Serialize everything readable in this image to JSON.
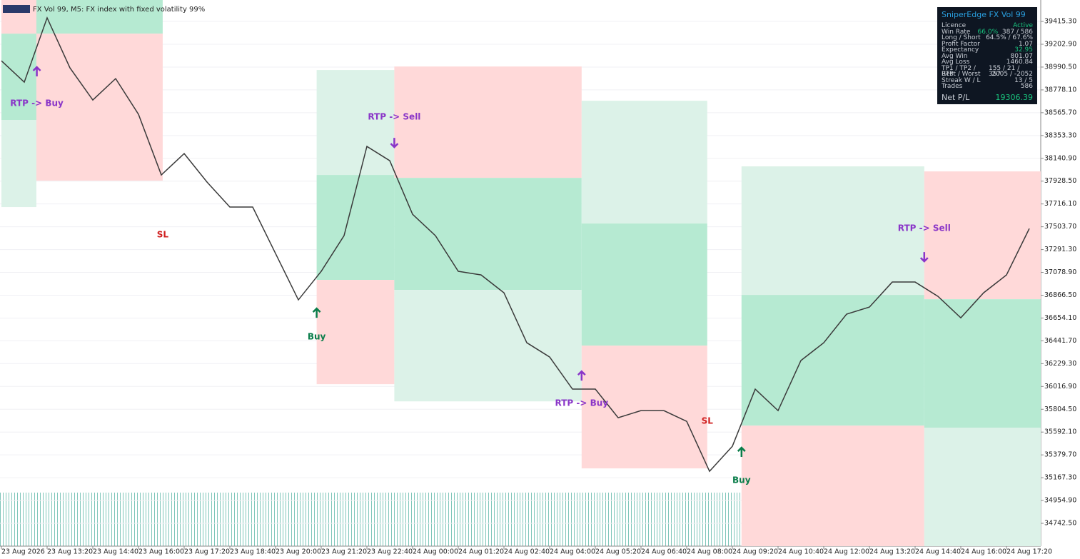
{
  "chart_data": {
    "type": "line",
    "title": "FX Vol 99, M5:  FX index with fixed volatility 99%",
    "categories": [
      "23 Aug 2026",
      null,
      "23 Aug 13:20",
      null,
      "23 Aug 14:40",
      null,
      "23 Aug 16:00",
      null,
      "23 Aug 17:20",
      null,
      "23 Aug 18:40",
      null,
      "23 Aug 20:00",
      null,
      "23 Aug 21:20",
      null,
      "23 Aug 22:40",
      null,
      "24 Aug 00:00",
      null,
      "24 Aug 01:20",
      null,
      "24 Aug 02:40",
      null,
      "24 Aug 04:00",
      null,
      "24 Aug 05:20",
      null,
      "24 Aug 06:40",
      null,
      "24 Aug 08:00",
      null,
      "24 Aug 09:20",
      null,
      "24 Aug 10:40",
      null,
      "24 Aug 12:00",
      null,
      "24 Aug 13:20",
      null,
      "24 Aug 14:40",
      null,
      "24 Aug 16:00",
      null,
      "24 Aug 17:20",
      null
    ],
    "series": [
      {
        "name": "FX Vol 99",
        "color": "#3a3a3a",
        "values": [
          39049,
          38850,
          39449,
          38983,
          38684,
          38883,
          38551,
          37986,
          38185,
          37920,
          37687,
          37687,
          37255,
          36823,
          37089,
          37421,
          38252,
          38119,
          37620,
          37421,
          37089,
          37055,
          36889,
          36424,
          36291,
          35992,
          35992,
          35726,
          35792,
          35792,
          35692,
          35227,
          35460,
          35992,
          35792,
          36258,
          36424,
          36690,
          36756,
          36989,
          36989,
          36856,
          36656,
          36889,
          37055,
          37487
        ]
      }
    ],
    "ylim": [
      34530,
      39615
    ],
    "yticks": [
      {
        "value": 39415.3,
        "label": "39415.30"
      },
      {
        "value": 39202.9,
        "label": "39202.90"
      },
      {
        "value": 38990.5,
        "label": "38990.50"
      },
      {
        "value": 38778.1,
        "label": "38778.10"
      },
      {
        "value": 38565.7,
        "label": "38565.70"
      },
      {
        "value": 38353.3,
        "label": "38353.30"
      },
      {
        "value": 38140.9,
        "label": "38140.90"
      },
      {
        "value": 37928.5,
        "label": "37928.50"
      },
      {
        "value": 37716.1,
        "label": "37716.10"
      },
      {
        "value": 37503.7,
        "label": "37503.70"
      },
      {
        "value": 37291.3,
        "label": "37291.30"
      },
      {
        "value": 37078.9,
        "label": "37078.90"
      },
      {
        "value": 36866.5,
        "label": "36866.50"
      },
      {
        "value": 36654.1,
        "label": "36654.10"
      },
      {
        "value": 36441.7,
        "label": "36441.70"
      },
      {
        "value": 36229.3,
        "label": "36229.30"
      },
      {
        "value": 36016.9,
        "label": "36016.90"
      },
      {
        "value": 35804.5,
        "label": "35804.50"
      },
      {
        "value": 35592.1,
        "label": "35592.10"
      },
      {
        "value": 35379.7,
        "label": "35379.70"
      },
      {
        "value": 35167.3,
        "label": "35167.30"
      },
      {
        "value": 34954.9,
        "label": "34954.90"
      },
      {
        "value": 34742.5,
        "label": "34742.50"
      }
    ],
    "grid": true,
    "zones": [
      {
        "from": 0,
        "to": 1.53,
        "top": 38498,
        "bottom": 37687,
        "color": "#dcf2e8"
      },
      {
        "from": 0,
        "to": 1.53,
        "top": 39302,
        "bottom": 38498,
        "color": "#b6ead2"
      },
      {
        "from": 0,
        "to": 1.53,
        "top": 39615,
        "bottom": 39302,
        "color": "#ffd9d9"
      },
      {
        "from": 1.53,
        "to": 7.06,
        "top": 39615,
        "bottom": 39302,
        "color": "#b6ead2"
      },
      {
        "from": 1.53,
        "to": 7.06,
        "top": 39302,
        "bottom": 37933,
        "color": "#ffd9d9"
      },
      {
        "from": 13.8,
        "to": 17.2,
        "top": 38963,
        "bottom": 37986,
        "color": "#dcf2e8"
      },
      {
        "from": 13.8,
        "to": 17.2,
        "top": 37986,
        "bottom": 37009,
        "color": "#b6ead2"
      },
      {
        "from": 13.8,
        "to": 17.2,
        "top": 37009,
        "bottom": 36038,
        "color": "#ffd9d9"
      },
      {
        "from": 17.2,
        "to": 25.4,
        "top": 38996,
        "bottom": 37959,
        "color": "#ffd9d9"
      },
      {
        "from": 17.2,
        "to": 25.4,
        "top": 37959,
        "bottom": 36916,
        "color": "#b6ead2"
      },
      {
        "from": 17.2,
        "to": 25.4,
        "top": 36916,
        "bottom": 35878,
        "color": "#dcf2e8"
      },
      {
        "from": 25.4,
        "to": 30.9,
        "top": 38677,
        "bottom": 37534,
        "color": "#dcf2e8"
      },
      {
        "from": 25.4,
        "to": 30.9,
        "top": 37534,
        "bottom": 36397,
        "color": "#b6ead2"
      },
      {
        "from": 25.4,
        "to": 30.9,
        "top": 36397,
        "bottom": 35254,
        "color": "#ffd9d9"
      },
      {
        "from": 32.4,
        "to": 40.4,
        "top": 38066,
        "bottom": 36869,
        "color": "#dcf2e8"
      },
      {
        "from": 32.4,
        "to": 40.4,
        "top": 36869,
        "bottom": 35652,
        "color": "#b6ead2"
      },
      {
        "from": 32.4,
        "to": 40.4,
        "top": 35652,
        "bottom": 34530,
        "color": "#ffd9d9"
      },
      {
        "from": 40.4,
        "to": 45.5,
        "top": 38019,
        "bottom": 36829,
        "color": "#ffd9d9"
      },
      {
        "from": 40.4,
        "to": 45.5,
        "top": 36829,
        "bottom": 35632,
        "color": "#b6ead2"
      },
      {
        "from": 40.4,
        "to": 45.5,
        "top": 35632,
        "bottom": 34530,
        "color": "#dcf2e8"
      }
    ],
    "annotations": [
      {
        "text": "RTP -> Buy",
        "x": 1.55,
        "price": 38650,
        "color": "#8a35c8"
      },
      {
        "text": "SL",
        "x": 7.06,
        "price": 37427,
        "color": "#d02020"
      },
      {
        "text": "RTP -> Sell",
        "x": 17.2,
        "price": 38525,
        "color": "#8a35c8"
      },
      {
        "text": "Buy",
        "x": 13.8,
        "price": 36477,
        "color": "#0a7d4a"
      },
      {
        "text": "RTP -> Buy",
        "x": 25.4,
        "price": 35859,
        "color": "#8a35c8"
      },
      {
        "text": "SL",
        "x": 30.9,
        "price": 35693,
        "color": "#d02020"
      },
      {
        "text": "Buy",
        "x": 32.4,
        "price": 35141,
        "color": "#0a7d4a"
      },
      {
        "text": "RTP -> Sell",
        "x": 40.4,
        "price": 37487,
        "color": "#8a35c8"
      }
    ],
    "signals": [
      {
        "dir": "up",
        "x": 1.55,
        "price": 38950,
        "color": "#8a35c8"
      },
      {
        "dir": "down",
        "x": 17.2,
        "price": 38285,
        "color": "#8a35c8"
      },
      {
        "dir": "up",
        "x": 13.8,
        "price": 36703,
        "color": "#0a7d4a"
      },
      {
        "dir": "up",
        "x": 25.4,
        "price": 36118,
        "color": "#8a35c8"
      },
      {
        "dir": "up",
        "x": 32.4,
        "price": 35407,
        "color": "#0a7d4a"
      },
      {
        "dir": "down",
        "x": 40.4,
        "price": 37221,
        "color": "#8a35c8"
      }
    ]
  },
  "panel": {
    "title": "SniperEdge FX Vol 99",
    "rows": [
      {
        "label": "Licence",
        "value": "Active",
        "color": "#19c37d"
      },
      {
        "label": "Win Rate",
        "value": "66.0%",
        "extra": "387 / 586",
        "color": "#19c37d"
      },
      {
        "label": "Long / Short",
        "value": "64.5%  /  67.6%"
      },
      {
        "label": "Profit Factor",
        "value": "1.07"
      },
      {
        "label": "Expectancy",
        "value": "32.95",
        "color": "#19c37d"
      },
      {
        "label": "Avg Win",
        "value": "801.07"
      },
      {
        "label": "Avg Loss",
        "value": "1460.84"
      },
      {
        "label": "TP1 / TP2 / RTP",
        "value": "155 / 21 / 357"
      },
      {
        "label": "Best / Worst",
        "value": "2005 / -2052"
      },
      {
        "label": "Streak W / L",
        "value": "13 / 5"
      },
      {
        "label": "Trades",
        "value": "586"
      }
    ],
    "net_label": "Net P/L",
    "net_value": "19306.39",
    "net_color": "#19c37d"
  }
}
